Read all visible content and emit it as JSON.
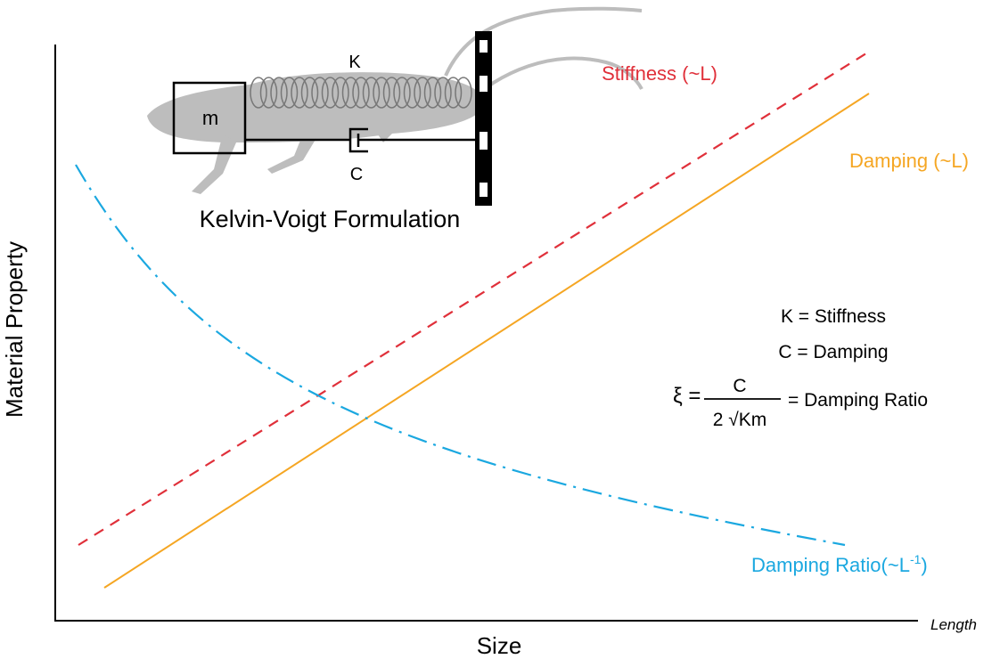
{
  "axes": {
    "y_label": "Material Property",
    "x_label": "Size",
    "x_unit": "Length"
  },
  "curves": {
    "stiffness": "Stiffness (~L)",
    "damping": "Damping (~L)",
    "damping_ratio": {
      "label": "Damping Ratio(~L",
      "superscript": "-1",
      "suffix": ")"
    }
  },
  "model": {
    "spring": "K",
    "mass": "m",
    "damper": "C",
    "caption": "Kelvin-Voigt Formulation"
  },
  "legend": {
    "stiffness": "K = Stiffness",
    "damping": "C = Damping",
    "equation": {
      "lhs": "ξ =",
      "numerator": "C",
      "denominator": "2 √Km",
      "rhs": "= Damping Ratio"
    }
  }
}
